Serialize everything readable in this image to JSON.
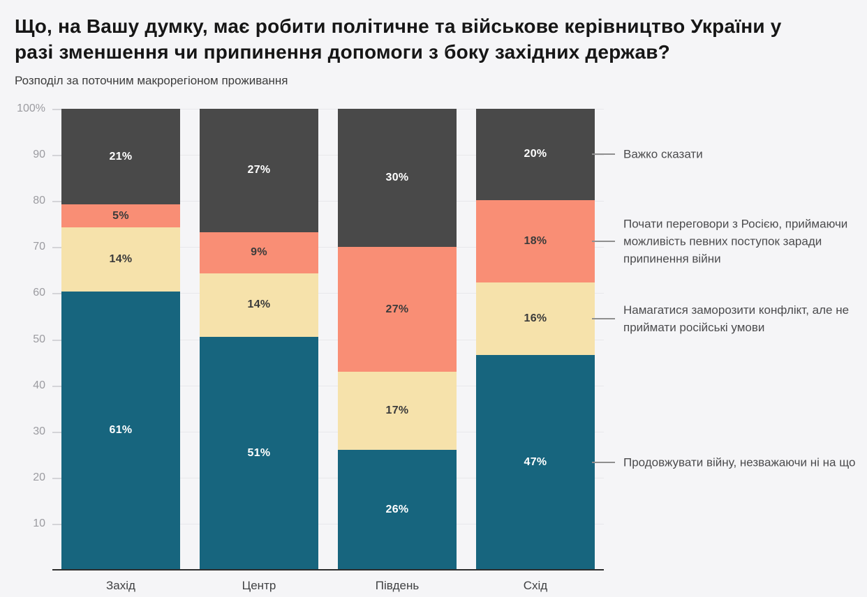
{
  "header": {
    "title": "Що, на Вашу думку, має робити політичне та військове керівництво України у разі зменшення чи припинення допомоги з боку західних держав?",
    "subtitle": "Розподіл за поточним макрорегіоном проживання"
  },
  "chart_data": {
    "type": "bar",
    "variant": "stacked-vertical",
    "title": "Що, на Вашу думку, має робити політичне та військове керівництво України у разі зменшення чи припинення допомоги з боку західних держав?",
    "subtitle": "Розподіл за поточним макрорегіоном проживання",
    "categories": [
      "Захід",
      "Центр",
      "Південь",
      "Схід"
    ],
    "series": [
      {
        "name": "Продовжувати війну, незважаючи ні на що",
        "color": "#17657e",
        "label_color": "#ffffff",
        "values": [
          61,
          51,
          26,
          47
        ]
      },
      {
        "name": "Намагатися заморозити конфлікт, але не приймати російські умови",
        "color": "#f6e2ab",
        "label_color": "#3b3b3b",
        "values": [
          14,
          14,
          17,
          16
        ]
      },
      {
        "name": "Почати переговори з Росією, приймаючи можливість певних поступок заради припинення війни",
        "color": "#f98e75",
        "label_color": "#3b3b3b",
        "values": [
          5,
          9,
          27,
          18
        ]
      },
      {
        "name": "Важко сказати",
        "color": "#494949",
        "label_color": "#ffffff",
        "values": [
          21,
          27,
          30,
          20
        ]
      }
    ],
    "value_suffix": "%",
    "ylabel": "",
    "xlabel": "",
    "ylim": [
      0,
      100
    ],
    "y_ticks": [
      {
        "value": 100,
        "label": "100%"
      },
      {
        "value": 90,
        "label": "90"
      },
      {
        "value": 80,
        "label": "80"
      },
      {
        "value": 70,
        "label": "70"
      },
      {
        "value": 60,
        "label": "60"
      },
      {
        "value": 50,
        "label": "50"
      },
      {
        "value": 40,
        "label": "40"
      },
      {
        "value": 30,
        "label": "30"
      },
      {
        "value": 20,
        "label": "20"
      },
      {
        "value": 10,
        "label": "10"
      }
    ],
    "grid": true,
    "legend_position": "right",
    "colors": {
      "background": "#f5f5f7",
      "gridline": "#e8e8eb",
      "axis_line": "#2d2d2d",
      "y_label_text": "#9b9ba0",
      "x_label_text": "#3f4042",
      "legend_text": "#4b4b4d",
      "leader_line": "#8f8f8f"
    }
  }
}
